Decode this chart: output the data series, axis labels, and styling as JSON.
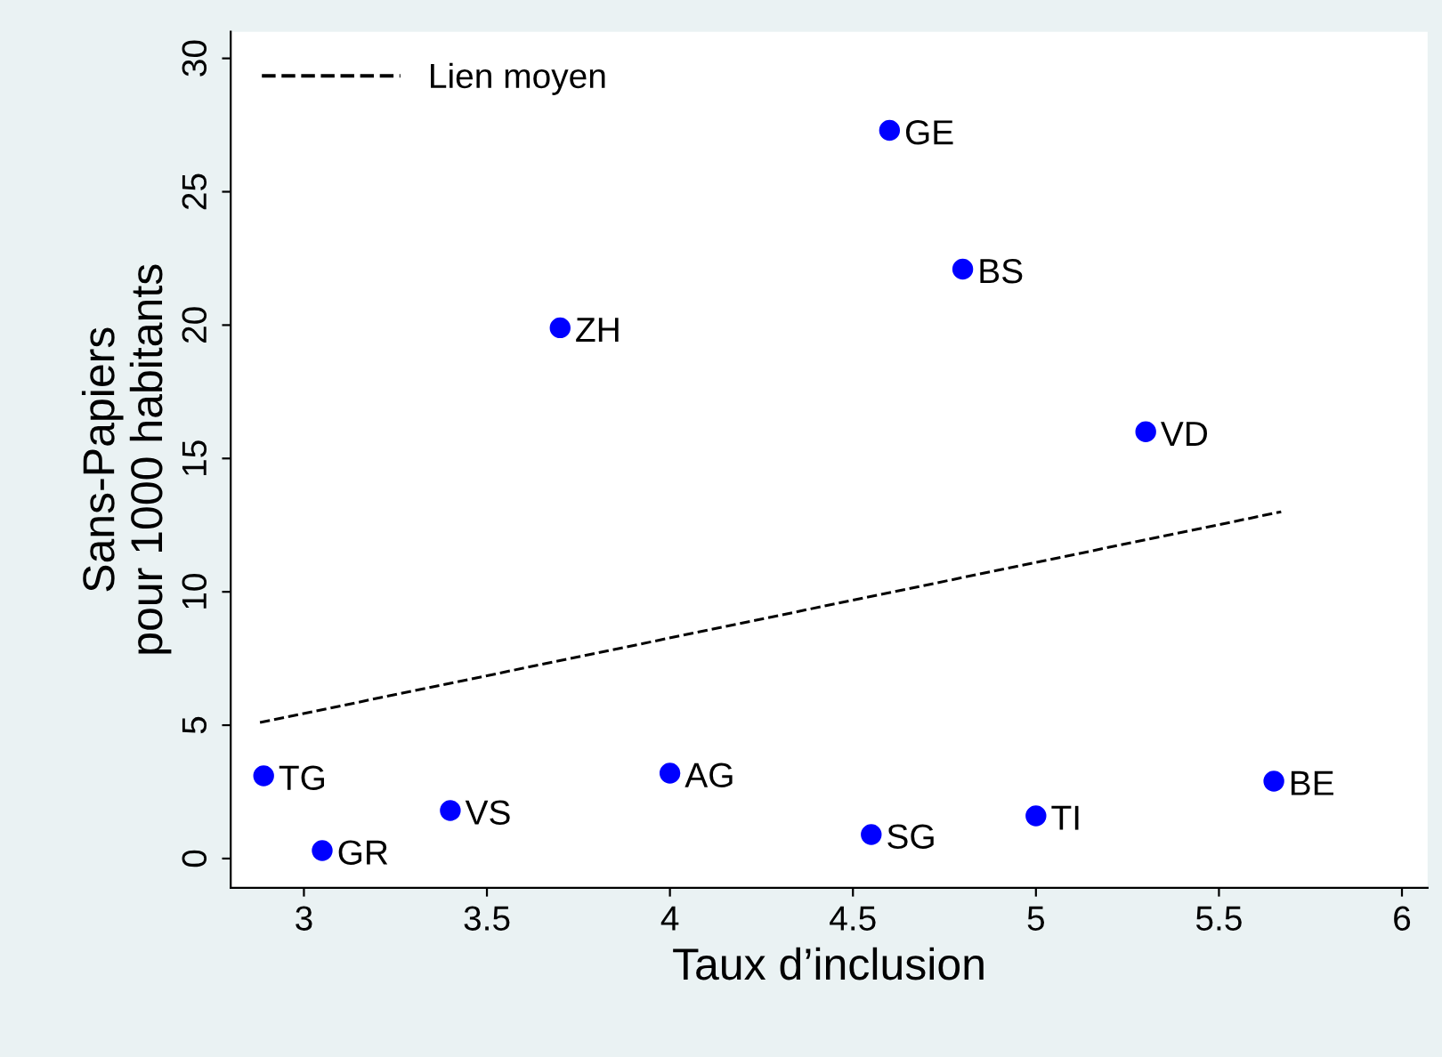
{
  "chart_data": {
    "type": "scatter",
    "xlabel": "Taux d’inclusion",
    "ylabel": "Sans-Papiers\npour 1000 habitants",
    "xlim": [
      2.8,
      6.07
    ],
    "ylim": [
      -1.1,
      31
    ],
    "xticks": [
      3,
      3.5,
      4,
      4.5,
      5,
      5.5,
      6
    ],
    "yticks": [
      0,
      5,
      10,
      15,
      20,
      25,
      30
    ],
    "grid": false,
    "legend": "top left",
    "marker": "circle",
    "series": [
      {
        "color": "#0000ff",
        "x": [
          2.89,
          3.05,
          3.4,
          3.7,
          4.0,
          4.55,
          4.6,
          4.8,
          5.0,
          5.3,
          5.65
        ],
        "values": [
          3.1,
          0.3,
          1.8,
          19.9,
          3.2,
          0.9,
          27.3,
          22.1,
          1.6,
          16.0,
          2.9
        ]
      },
      {
        "type": "line",
        "name": "Lien moyen",
        "color": "#000000",
        "line_style": "dashed",
        "marker": "none",
        "x": [
          2.88,
          5.67
        ],
        "values": [
          5.1,
          13.0
        ]
      }
    ],
    "annotations": [
      {
        "text": "TG",
        "x": 2.89,
        "y": 3.1
      },
      {
        "text": "GR",
        "x": 3.05,
        "y": 0.3
      },
      {
        "text": "VS",
        "x": 3.4,
        "y": 1.8
      },
      {
        "text": "ZH",
        "x": 3.7,
        "y": 19.9
      },
      {
        "text": "AG",
        "x": 4.0,
        "y": 3.2
      },
      {
        "text": "SG",
        "x": 4.55,
        "y": 0.9
      },
      {
        "text": "GE",
        "x": 4.6,
        "y": 27.3
      },
      {
        "text": "BS",
        "x": 4.8,
        "y": 22.1
      },
      {
        "text": "TI",
        "x": 5.0,
        "y": 1.6
      },
      {
        "text": "VD",
        "x": 5.3,
        "y": 16.0
      },
      {
        "text": "BE",
        "x": 5.65,
        "y": 2.9
      }
    ]
  }
}
